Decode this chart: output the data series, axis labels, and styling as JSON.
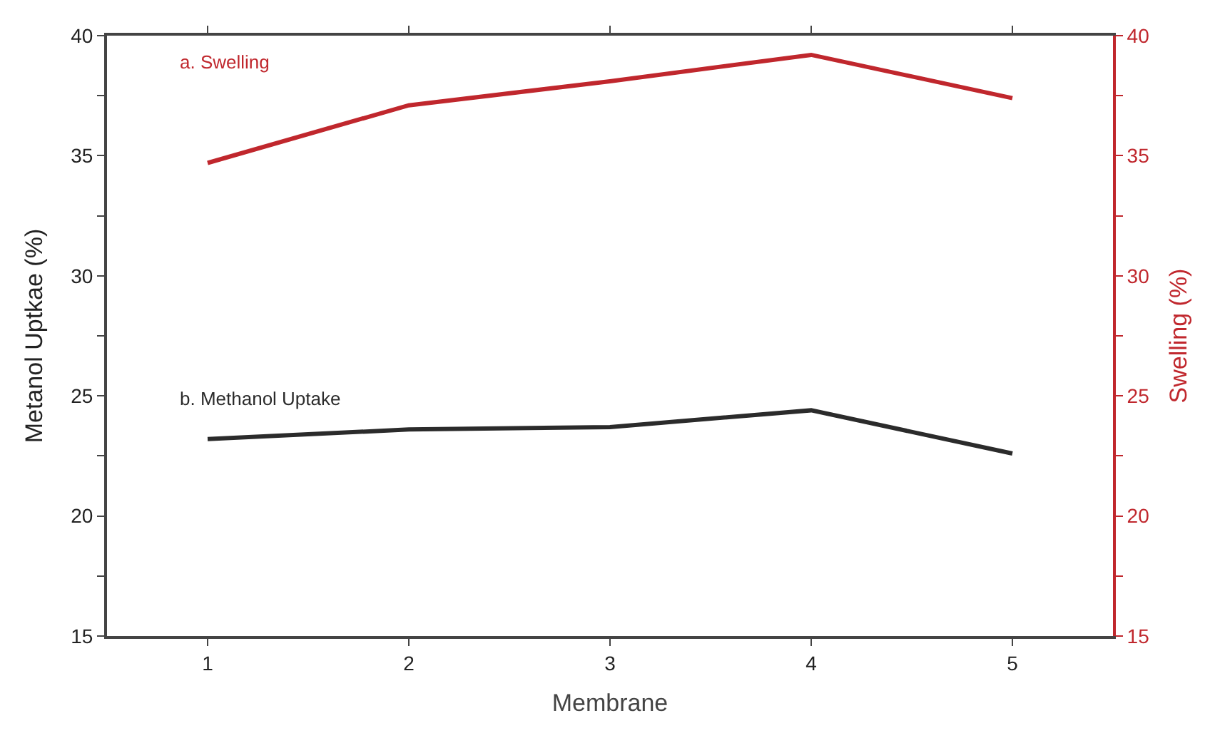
{
  "chart_data": {
    "type": "line",
    "xlabel": "Membrane",
    "ylabel": "Metanol Uptkae (%)",
    "y2label": "Swelling (%)",
    "x": [
      1,
      2,
      3,
      4,
      5
    ],
    "xlim": [
      0.5,
      5.5
    ],
    "xticks": [
      1,
      2,
      3,
      4,
      5
    ],
    "ylim": [
      15,
      40
    ],
    "yticks": [
      15,
      {
        "value": 17.5,
        "label": null
      },
      20,
      {
        "value": 22.5,
        "label": null
      },
      25,
      {
        "value": 27.5,
        "label": null
      },
      30,
      {
        "value": 32.5,
        "label": null
      },
      35,
      {
        "value": 37.5,
        "label": null
      },
      40
    ],
    "y2lim": [
      15,
      40
    ],
    "y2ticks": [
      15,
      {
        "value": 17.5,
        "label": null
      },
      20,
      {
        "value": 22.5,
        "label": null
      },
      25,
      {
        "value": 27.5,
        "label": null
      },
      30,
      {
        "value": 32.5,
        "label": null
      },
      35,
      {
        "value": 37.5,
        "label": null
      },
      40
    ],
    "series": [
      {
        "name": "a. Swelling",
        "color": "#c0272d",
        "axis": "y2",
        "values": [
          34.7,
          37.1,
          38.1,
          39.2,
          37.4
        ]
      },
      {
        "name": "b. Methanol Uptake",
        "color": "#2b2b2b",
        "values": [
          23.2,
          23.6,
          23.7,
          24.4,
          22.6
        ]
      }
    ],
    "legend": false,
    "marker": "none"
  }
}
